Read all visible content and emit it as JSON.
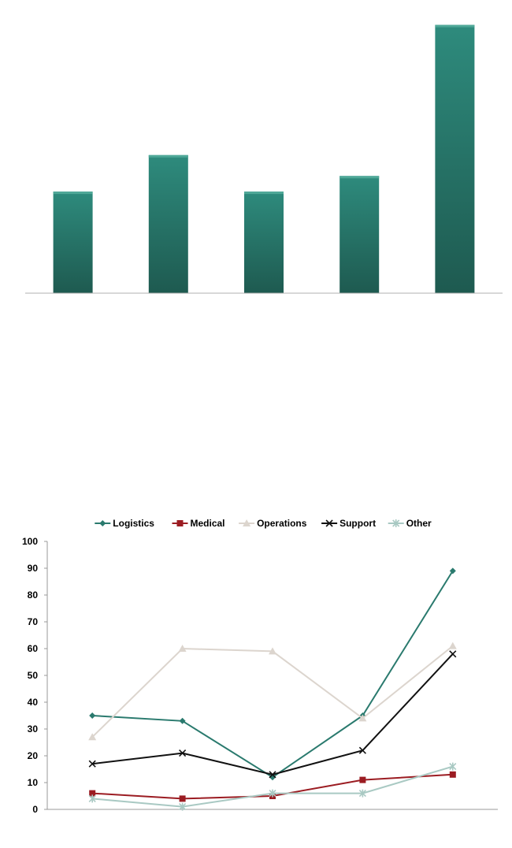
{
  "chart_data": [
    {
      "type": "bar",
      "categories": [
        "",
        "",
        "",
        "",
        ""
      ],
      "values": [
        39,
        53,
        39,
        45,
        103
      ],
      "ylim": [
        0,
        105
      ],
      "grid": false,
      "colors": {
        "bar_light": "#2e8b7d",
        "bar_dark": "#1e5a50",
        "axis": "#b0b0b0"
      }
    },
    {
      "type": "line",
      "x": [
        1,
        2,
        3,
        4,
        5
      ],
      "ylim": [
        0,
        100
      ],
      "yticks": [
        0,
        10,
        20,
        30,
        40,
        50,
        60,
        70,
        80,
        90,
        100
      ],
      "grid": false,
      "legend_position": "top",
      "series": [
        {
          "name": "Logistics",
          "values": [
            35,
            33,
            12,
            35,
            89
          ],
          "color": "#2a7a6e",
          "marker": "diamond"
        },
        {
          "name": "Medical",
          "values": [
            6,
            4,
            5,
            11,
            13
          ],
          "color": "#9b1c22",
          "marker": "square"
        },
        {
          "name": "Operations",
          "values": [
            27,
            60,
            59,
            34,
            61
          ],
          "color": "#dcd5ce",
          "marker": "triangle"
        },
        {
          "name": "Support",
          "values": [
            17,
            21,
            13,
            22,
            58
          ],
          "color": "#111111",
          "marker": "x"
        },
        {
          "name": "Other",
          "values": [
            4,
            1,
            6,
            6,
            16
          ],
          "color": "#a9c9c3",
          "marker": "star"
        }
      ]
    }
  ]
}
